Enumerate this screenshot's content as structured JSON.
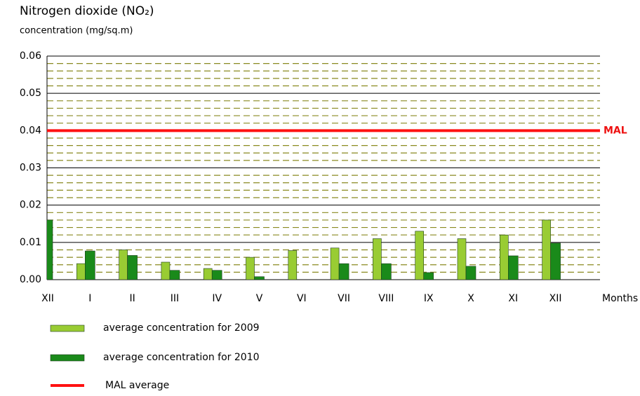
{
  "chart_data": {
    "type": "bar",
    "title": "Nitrogen dioxide (NO₂)",
    "subtitle": "concentration (mg/sq.m)",
    "x_label": "Months",
    "categories": [
      "XII",
      "I",
      "II",
      "III",
      "IV",
      "V",
      "VI",
      "VII",
      "VIII",
      "IX",
      "X",
      "XI",
      "XII"
    ],
    "series": [
      {
        "name": "average concentration for 2009",
        "color": "#99cc33",
        "values": [
          null,
          0.0043,
          0.008,
          0.0047,
          0.003,
          0.006,
          0.0078,
          0.0085,
          0.011,
          0.013,
          0.011,
          0.012,
          0.016
        ]
      },
      {
        "name": "average concentration for 2010",
        "color": "#1a8a1a",
        "values": [
          0.016,
          0.0077,
          0.0065,
          0.0025,
          0.0025,
          0.0008,
          null,
          0.0043,
          0.0043,
          0.0019,
          0.0036,
          0.0064,
          0.0098
        ]
      }
    ],
    "reference_line": {
      "name": "MAL average",
      "label": "MAL",
      "value": 0.04,
      "color": "#ff1111"
    },
    "ylim": [
      0,
      0.06
    ],
    "yticks": [
      {
        "value": 0,
        "label": "0.00"
      },
      0.01,
      0.02,
      0.03,
      0.04,
      0.05,
      0.06
    ],
    "grid": true
  }
}
